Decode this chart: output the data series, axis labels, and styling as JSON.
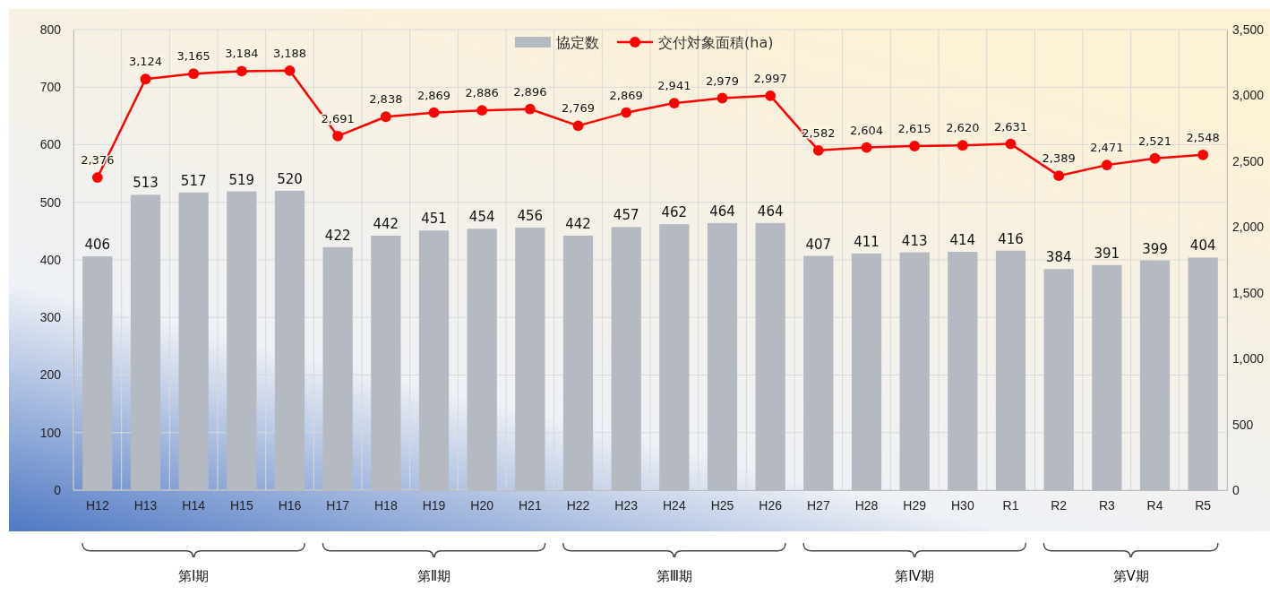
{
  "chart_data": {
    "type": "bar",
    "categories": [
      "H12",
      "H13",
      "H14",
      "H15",
      "H16",
      "H17",
      "H18",
      "H19",
      "H20",
      "H21",
      "H22",
      "H23",
      "H24",
      "H25",
      "H26",
      "H27",
      "H28",
      "H29",
      "H30",
      "R1",
      "R2",
      "R3",
      "R4",
      "R5"
    ],
    "series": [
      {
        "name": "協定数",
        "color": "#b4b9c2",
        "values": [
          406,
          513,
          517,
          519,
          520,
          422,
          442,
          451,
          454,
          456,
          442,
          457,
          462,
          464,
          464,
          407,
          411,
          413,
          414,
          416,
          384,
          391,
          399,
          404
        ],
        "value_labels": [
          "406",
          "513",
          "517",
          "519",
          "520",
          "422",
          "442",
          "451",
          "454",
          "456",
          "442",
          "457",
          "462",
          "464",
          "464",
          "407",
          "411",
          "413",
          "414",
          "416",
          "384",
          "391",
          "399",
          "404"
        ]
      },
      {
        "name": "交付対象面積(ha)",
        "type": "line",
        "axis": "y2",
        "color": "#ff0000",
        "marker": "circle",
        "values": [
          2376,
          3124,
          3165,
          3184,
          3188,
          2691,
          2838,
          2869,
          2886,
          2896,
          2769,
          2869,
          2941,
          2979,
          2997,
          2582,
          2604,
          2615,
          2620,
          2631,
          2389,
          2471,
          2521,
          2548
        ],
        "value_labels": [
          "2,376",
          "3,124",
          "3,165",
          "3,184",
          "3,188",
          "2,691",
          "2,838",
          "2,869",
          "2,886",
          "2,896",
          "2,769",
          "2,869",
          "2,941",
          "2,979",
          "2,997",
          "2,582",
          "2,604",
          "2,615",
          "2,620",
          "2,631",
          "2,389",
          "2,471",
          "2,521",
          "2,548"
        ]
      }
    ],
    "ylim": [
      0,
      800
    ],
    "yticks": [
      0,
      100,
      200,
      300,
      400,
      500,
      600,
      700,
      800
    ],
    "y2lim": [
      0,
      3500
    ],
    "y2ticks": [
      0,
      500,
      {
        "value": 1000,
        "label": "1,000"
      },
      {
        "value": 1500,
        "label": "1,500"
      },
      {
        "value": 2000,
        "label": "2,000"
      },
      {
        "value": 2500,
        "label": "2,500"
      },
      {
        "value": 3000,
        "label": "3,000"
      },
      {
        "value": 3500,
        "label": "3,500"
      }
    ],
    "grid": true,
    "legend": "top",
    "annotations": [
      "第Ⅰ期",
      "第Ⅱ期",
      "第Ⅲ期",
      "第Ⅳ期",
      "第Ⅴ期"
    ]
  }
}
